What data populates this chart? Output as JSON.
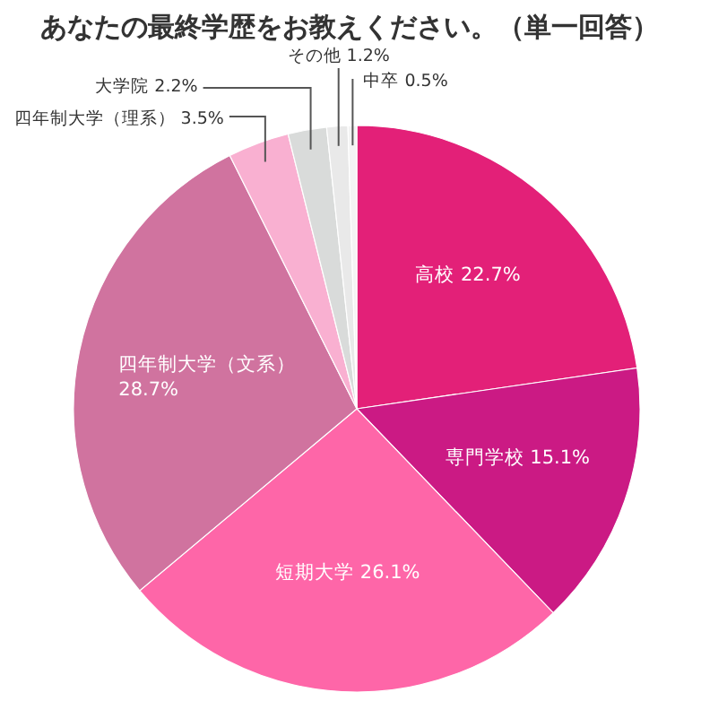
{
  "chart_data": {
    "type": "pie",
    "title": "あなたの最終学歴をお教えください。（単一回答）",
    "categories": [
      "高校",
      "専門学校",
      "短期大学",
      "四年制大学（文系）",
      "四年制大学（理系）",
      "大学院",
      "その他",
      "中卒"
    ],
    "values": [
      22.7,
      15.1,
      26.1,
      28.7,
      3.5,
      2.2,
      1.2,
      0.5
    ],
    "value_labels": [
      "22.7%",
      "15.1%",
      "26.1%",
      "28.7%",
      "3.5%",
      "2.2%",
      "1.2%",
      "0.5%"
    ],
    "colors": [
      "#e32078",
      "#cb1a84",
      "#fe66a8",
      "#d0739f",
      "#f9b0d1",
      "#d9dbda",
      "#e9e9e9",
      "#f4f4f4"
    ]
  }
}
